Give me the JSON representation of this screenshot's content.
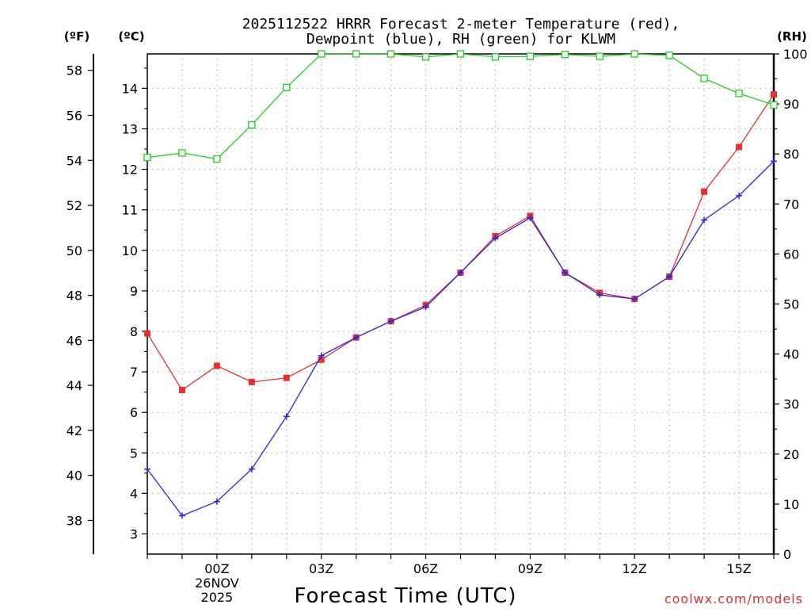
{
  "chart_data": {
    "type": "line",
    "title_line1": "2025112522 HRRR Forecast 2-meter Temperature (red),",
    "title_line2": "Dewpoint (blue), RH (green) for KLWM",
    "xlabel": "Forecast Time (UTC)",
    "source": "coolwx.com/models",
    "units": {
      "fahrenheit": "(ºF)",
      "celsius": "(ºC)",
      "rh": "(RH)"
    },
    "x_hours": [
      -2,
      -1,
      0,
      1,
      2,
      3,
      4,
      5,
      6,
      7,
      8,
      9,
      10,
      11,
      12,
      13,
      14,
      15,
      16
    ],
    "x_ticks": [
      {
        "hour": 0,
        "label": "00Z",
        "sub1": "26NOV",
        "sub2": "2025"
      },
      {
        "hour": 3,
        "label": "03Z"
      },
      {
        "hour": 6,
        "label": "06Z"
      },
      {
        "hour": 9,
        "label": "09Z"
      },
      {
        "hour": 12,
        "label": "12Z"
      },
      {
        "hour": 15,
        "label": "15Z"
      }
    ],
    "celsius_axis": {
      "range": [
        2.5,
        14.85
      ],
      "ticks": [
        3,
        4,
        5,
        6,
        7,
        8,
        9,
        10,
        11,
        12,
        13,
        14
      ]
    },
    "fahrenheit_axis": {
      "ticks": [
        38,
        40,
        42,
        44,
        46,
        48,
        50,
        52,
        54,
        56,
        58
      ]
    },
    "rh_axis": {
      "range": [
        0,
        100
      ],
      "ticks": [
        0,
        10,
        20,
        30,
        40,
        50,
        60,
        70,
        80,
        90,
        100
      ]
    },
    "series": [
      {
        "name": "Temperature",
        "unit": "C",
        "color": "#e83030",
        "marker": "filled-square",
        "values": [
          7.95,
          6.55,
          7.15,
          6.75,
          6.85,
          7.3,
          7.85,
          8.25,
          8.65,
          9.45,
          10.35,
          10.85,
          9.45,
          8.95,
          8.8,
          9.35,
          11.45,
          12.55,
          13.85
        ]
      },
      {
        "name": "Dewpoint",
        "unit": "C",
        "color": "#2828e0",
        "marker": "plus",
        "values": [
          4.6,
          3.45,
          3.8,
          4.6,
          5.9,
          7.4,
          7.85,
          8.25,
          8.6,
          9.45,
          10.3,
          10.8,
          9.45,
          8.9,
          8.8,
          9.35,
          10.75,
          11.35,
          12.2
        ]
      },
      {
        "name": "RH",
        "unit": "%",
        "color": "#20d020",
        "marker": "open-square",
        "values": [
          79.3,
          80.2,
          79.0,
          85.8,
          93.3,
          100,
          100,
          100,
          99.4,
          100,
          99.4,
          99.5,
          99.9,
          99.5,
          100,
          99.7,
          95.1,
          92.1,
          89.8
        ]
      }
    ]
  }
}
